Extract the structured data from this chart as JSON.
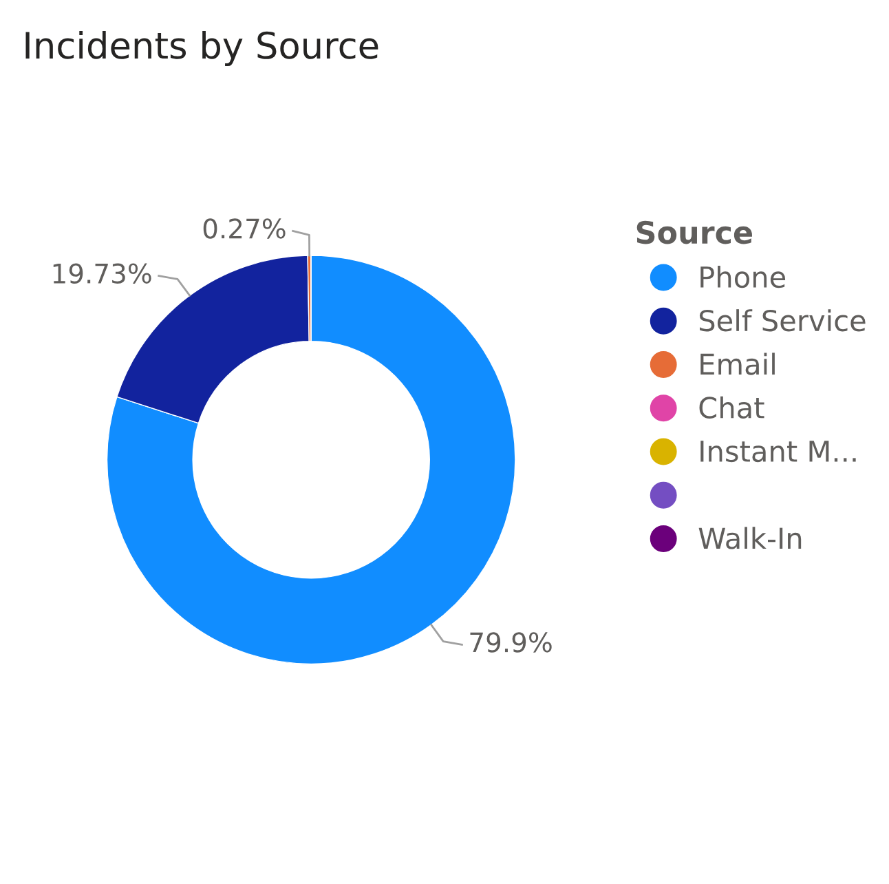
{
  "chart_data": {
    "type": "donut",
    "title": "Incidents by Source",
    "legend_title": "Source",
    "legend": "right",
    "categories": [
      "Phone",
      "Self Service",
      "Email",
      "Chat",
      "Instant M...",
      null,
      "Walk-In"
    ],
    "values": [
      79.9,
      19.73,
      0.27,
      0,
      0,
      0,
      0
    ],
    "value_labels": [
      "79.9%",
      "19.73%",
      "0.27%",
      null,
      null,
      null,
      null
    ],
    "colors": [
      "#118dff",
      "#12239e",
      "#e66c37",
      "#e044a7",
      "#d9b300",
      "#744ec2",
      "#6b007b"
    ]
  }
}
